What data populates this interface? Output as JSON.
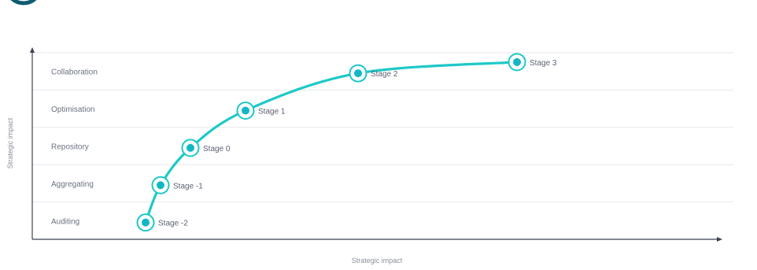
{
  "chart_data": {
    "type": "line",
    "xlabel": "Strategic impact",
    "ylabel": "Strategic impact",
    "bands": [
      "Auditing",
      "Aggregating",
      "Repository",
      "Optimisation",
      "Collaboration"
    ],
    "points": [
      {
        "label": "Stage -2",
        "level": 0.45
      },
      {
        "label": "Stage -1",
        "level": 1.45
      },
      {
        "label": "Stage 0",
        "level": 2.45
      },
      {
        "label": "Stage 1",
        "level": 3.45
      },
      {
        "label": "Stage 2",
        "level": 4.45
      },
      {
        "label": "Stage 3",
        "level": 4.75
      }
    ],
    "grid": true,
    "colors": {
      "curve": "#1ec8c8",
      "marker": "#12b7c4",
      "grid": "#e6e9ee",
      "axis": "#3b4252"
    }
  },
  "icons": {
    "top_left": "partial-circle-logo-icon"
  }
}
